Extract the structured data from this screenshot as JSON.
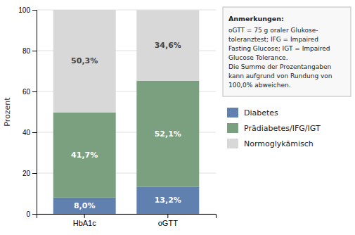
{
  "chart_data": {
    "type": "bar",
    "stacked": true,
    "data_labels": true,
    "grid": true,
    "legend": "right",
    "categories": [
      "HbA1c",
      "oGTT"
    ],
    "ylabel": "Prozent",
    "ylim": [
      0,
      100
    ],
    "yticks": [
      0,
      20,
      40,
      60,
      80,
      100
    ],
    "series": [
      {
        "name": "Diabetes",
        "color": "#6080b0",
        "values": [
          8.0,
          13.2
        ],
        "value_labels": [
          "8,0%",
          "13,2%"
        ]
      },
      {
        "name": "Prädiabetes/IFG/IGT",
        "color": "#7aA080",
        "values": [
          41.7,
          52.1
        ],
        "value_labels": [
          "41,7%",
          "52,1%"
        ]
      },
      {
        "name": "Normoglykämisch",
        "color": "#d8d8d8",
        "values": [
          50.3,
          34.6
        ],
        "value_labels": [
          "50,3%",
          "34,6%"
        ]
      }
    ],
    "annotation_title": "Anmerkungen:",
    "annotation_lines": [
      "oGTT = 75 g oraler Glukose-",
      "toleranztest; IFG = Impaired",
      "Fasting Glucose; IGT = Impaired",
      "Glucose Tolerance.",
      "Die Summe der Prozentangaben",
      "kann aufgrund von Rundung von",
      "100,0% abweichen."
    ]
  }
}
